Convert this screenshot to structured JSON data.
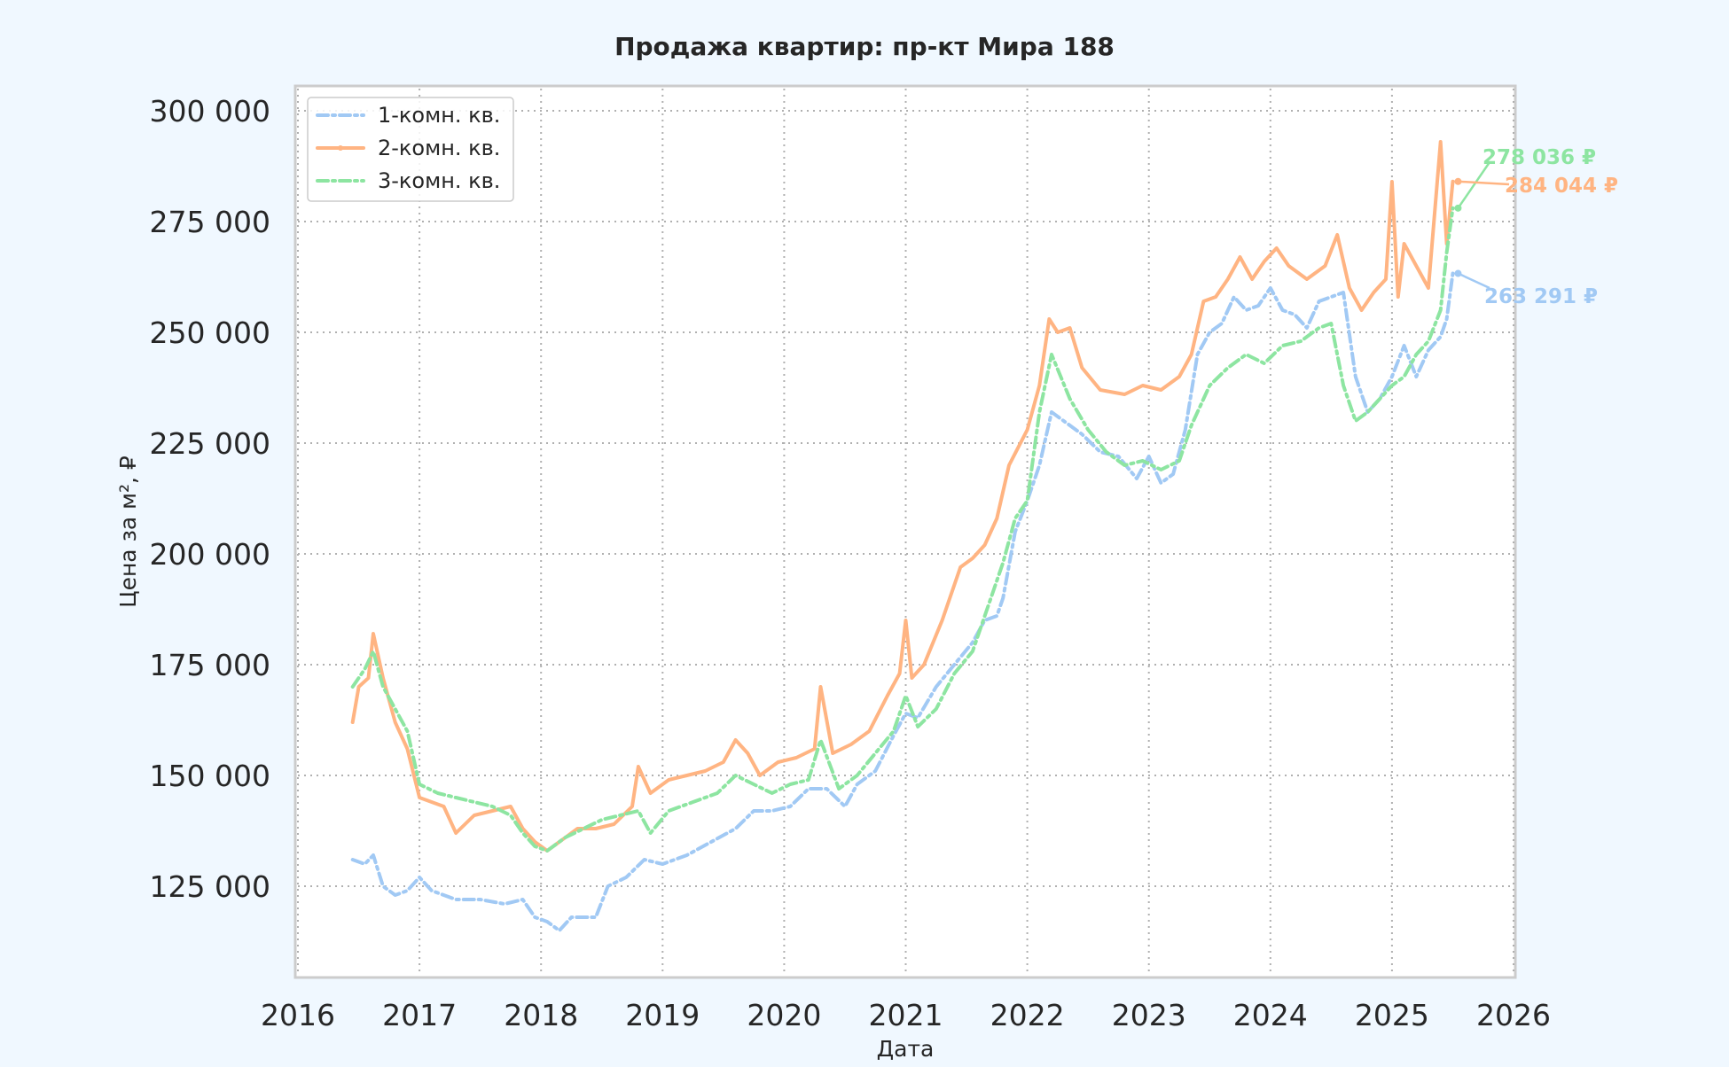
{
  "chart_data": {
    "type": "line",
    "title": "Продажа квартир: пр-кт Мира 188",
    "xlabel": "Дата",
    "ylabel": "Цена за м², ₽",
    "xlim": [
      2016,
      2026
    ],
    "ylim": [
      105000,
      305000
    ],
    "x_ticks": [
      2016,
      2017,
      2018,
      2019,
      2020,
      2021,
      2022,
      2023,
      2024,
      2025,
      2026
    ],
    "x_tick_labels": [
      "2016",
      "2017",
      "2018",
      "2019",
      "2020",
      "2021",
      "2022",
      "2023",
      "2024",
      "2025",
      "2026"
    ],
    "y_ticks": [
      125000,
      150000,
      175000,
      200000,
      225000,
      250000,
      275000,
      300000
    ],
    "y_tick_labels": [
      "125 000",
      "150 000",
      "175 000",
      "200 000",
      "225 000",
      "250 000",
      "275 000",
      "300 000"
    ],
    "grid": true,
    "legend_position": "top-left",
    "series": [
      {
        "name": "1-комн. кв.",
        "color": "#a1c9f4",
        "dash": "12 5 3 5",
        "x": [
          2016.45,
          2016.55,
          2016.62,
          2016.7,
          2016.8,
          2016.9,
          2017.0,
          2017.1,
          2017.3,
          2017.5,
          2017.7,
          2017.85,
          2017.95,
          2018.05,
          2018.15,
          2018.25,
          2018.35,
          2018.45,
          2018.55,
          2018.7,
          2018.85,
          2019.0,
          2019.2,
          2019.4,
          2019.6,
          2019.75,
          2019.9,
          2020.05,
          2020.2,
          2020.35,
          2020.5,
          2020.6,
          2020.75,
          2020.9,
          2021.0,
          2021.1,
          2021.25,
          2021.4,
          2021.55,
          2021.65,
          2021.75,
          2021.8,
          2021.9,
          2022.0,
          2022.1,
          2022.2,
          2022.3,
          2022.45,
          2022.6,
          2022.75,
          2022.9,
          2023.0,
          2023.1,
          2023.2,
          2023.3,
          2023.4,
          2023.5,
          2023.6,
          2023.7,
          2023.8,
          2023.9,
          2024.0,
          2024.1,
          2024.2,
          2024.3,
          2024.4,
          2024.5,
          2024.6,
          2024.7,
          2024.8,
          2024.9,
          2025.0,
          2025.1,
          2025.2,
          2025.3,
          2025.4,
          2025.45,
          2025.5
        ],
        "y": [
          131000,
          130000,
          132000,
          125000,
          123000,
          124000,
          127000,
          124000,
          122000,
          122000,
          121000,
          122000,
          118000,
          117000,
          115000,
          118000,
          118000,
          118000,
          125000,
          127000,
          131000,
          130000,
          132000,
          135000,
          138000,
          142000,
          142000,
          143000,
          147000,
          147000,
          143000,
          148000,
          151000,
          159000,
          164000,
          163000,
          170000,
          175000,
          180000,
          185000,
          186000,
          190000,
          205000,
          212000,
          220000,
          232000,
          230000,
          227000,
          223000,
          222000,
          217000,
          222000,
          216000,
          218000,
          228000,
          245000,
          250000,
          252000,
          258000,
          255000,
          256000,
          260000,
          255000,
          254000,
          251000,
          257000,
          258000,
          259000,
          240000,
          232000,
          235000,
          240000,
          247000,
          240000,
          246000,
          249000,
          253000,
          263291
        ]
      },
      {
        "name": "2-комн. кв.",
        "color": "#ffb482",
        "dash": "",
        "x": [
          2016.45,
          2016.5,
          2016.58,
          2016.62,
          2016.7,
          2016.8,
          2016.9,
          2017.0,
          2017.2,
          2017.3,
          2017.45,
          2017.6,
          2017.75,
          2017.85,
          2017.95,
          2018.05,
          2018.15,
          2018.3,
          2018.45,
          2018.6,
          2018.75,
          2018.8,
          2018.9,
          2019.05,
          2019.2,
          2019.35,
          2019.5,
          2019.6,
          2019.7,
          2019.8,
          2019.95,
          2020.1,
          2020.25,
          2020.3,
          2020.4,
          2020.55,
          2020.7,
          2020.85,
          2020.95,
          2021.0,
          2021.05,
          2021.15,
          2021.3,
          2021.45,
          2021.55,
          2021.65,
          2021.75,
          2021.85,
          2022.0,
          2022.1,
          2022.18,
          2022.25,
          2022.35,
          2022.45,
          2022.6,
          2022.8,
          2022.95,
          2023.1,
          2023.25,
          2023.35,
          2023.45,
          2023.55,
          2023.65,
          2023.75,
          2023.85,
          2023.95,
          2024.05,
          2024.15,
          2024.3,
          2024.45,
          2024.55,
          2024.65,
          2024.75,
          2024.85,
          2024.95,
          2025.0,
          2025.05,
          2025.1,
          2025.2,
          2025.3,
          2025.4,
          2025.45,
          2025.5
        ],
        "y": [
          162000,
          170000,
          172000,
          182000,
          172000,
          162000,
          156000,
          145000,
          143000,
          137000,
          141000,
          142000,
          143000,
          138000,
          135000,
          133000,
          135000,
          138000,
          138000,
          139000,
          143000,
          152000,
          146000,
          149000,
          150000,
          151000,
          153000,
          158000,
          155000,
          150000,
          153000,
          154000,
          156000,
          170000,
          155000,
          157000,
          160000,
          168000,
          173000,
          185000,
          172000,
          175000,
          185000,
          197000,
          199000,
          202000,
          208000,
          220000,
          228000,
          238000,
          253000,
          250000,
          251000,
          242000,
          237000,
          236000,
          238000,
          237000,
          240000,
          245000,
          257000,
          258000,
          262000,
          267000,
          262000,
          266000,
          269000,
          265000,
          262000,
          265000,
          272000,
          260000,
          255000,
          259000,
          262000,
          284000,
          258000,
          270000,
          265000,
          260000,
          293000,
          270000,
          284044
        ]
      },
      {
        "name": "3-комн. кв.",
        "color": "#8de5a1",
        "dash": "12 5 3 5",
        "x": [
          2016.45,
          2016.55,
          2016.62,
          2016.7,
          2016.8,
          2016.9,
          2017.0,
          2017.15,
          2017.3,
          2017.45,
          2017.6,
          2017.75,
          2017.85,
          2017.95,
          2018.05,
          2018.2,
          2018.35,
          2018.5,
          2018.65,
          2018.8,
          2018.9,
          2019.05,
          2019.25,
          2019.45,
          2019.6,
          2019.75,
          2019.9,
          2020.05,
          2020.2,
          2020.3,
          2020.45,
          2020.6,
          2020.75,
          2020.9,
          2021.0,
          2021.1,
          2021.25,
          2021.4,
          2021.55,
          2021.7,
          2021.8,
          2021.9,
          2022.0,
          2022.1,
          2022.2,
          2022.35,
          2022.5,
          2022.65,
          2022.8,
          2022.95,
          2023.1,
          2023.25,
          2023.35,
          2023.5,
          2023.65,
          2023.8,
          2023.95,
          2024.1,
          2024.25,
          2024.4,
          2024.5,
          2024.6,
          2024.7,
          2024.8,
          2024.9,
          2025.0,
          2025.1,
          2025.2,
          2025.3,
          2025.4,
          2025.45,
          2025.5
        ],
        "y": [
          170000,
          174000,
          178000,
          170000,
          165000,
          160000,
          148000,
          146000,
          145000,
          144000,
          143000,
          141000,
          137000,
          134000,
          133000,
          136000,
          138000,
          140000,
          141000,
          142000,
          137000,
          142000,
          144000,
          146000,
          150000,
          148000,
          146000,
          148000,
          149000,
          158000,
          147000,
          150000,
          155000,
          160000,
          168000,
          161000,
          165000,
          173000,
          178000,
          190000,
          198000,
          208000,
          212000,
          232000,
          245000,
          235000,
          228000,
          223000,
          220000,
          221000,
          219000,
          221000,
          229000,
          238000,
          242000,
          245000,
          243000,
          247000,
          248000,
          251000,
          252000,
          238000,
          230000,
          232000,
          235000,
          238000,
          240000,
          245000,
          248000,
          255000,
          268000,
          278036
        ]
      }
    ],
    "annotations": [
      {
        "text": "278 036 ₽",
        "series": "3-комн. кв.",
        "x": 2025.5,
        "y": 278036,
        "color": "#8de5a1"
      },
      {
        "text": "284 044 ₽",
        "series": "2-комн. кв.",
        "x": 2025.5,
        "y": 284044,
        "color": "#ffb482"
      },
      {
        "text": "263 291 ₽",
        "series": "1-комн. кв.",
        "x": 2025.5,
        "y": 263291,
        "color": "#a1c9f4"
      }
    ]
  }
}
